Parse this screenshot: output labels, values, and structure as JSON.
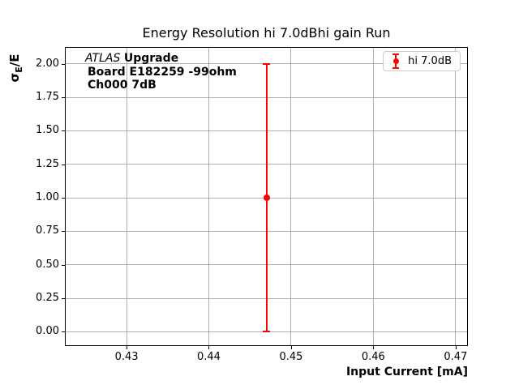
{
  "chart_data": {
    "type": "scatter",
    "title": "Energy Resolution hi 7.0dBhi gain Run",
    "xlabel": "Input Current [mA]",
    "ylabel": {
      "symbol": "σ",
      "subscript": "E",
      "suffix": "/E"
    },
    "xlim": [
      0.4226,
      0.4714
    ],
    "ylim": [
      -0.1,
      2.12
    ],
    "xticks": [
      0.43,
      0.44,
      0.45,
      0.46,
      0.47
    ],
    "xtick_labels": [
      "0.43",
      "0.44",
      "0.45",
      "0.46",
      "0.47"
    ],
    "yticks": [
      0.0,
      0.25,
      0.5,
      0.75,
      1.0,
      1.25,
      1.5,
      1.75,
      2.0
    ],
    "ytick_labels": [
      "0.00",
      "0.25",
      "0.50",
      "0.75",
      "1.00",
      "1.25",
      "1.50",
      "1.75",
      "2.00"
    ],
    "grid": true,
    "legend_position": "upper right",
    "series": [
      {
        "name": "hi 7.0dB",
        "color": "#ff0000",
        "marker": "circle-with-errorbar",
        "points": [
          {
            "x": 0.447,
            "y": 1.0,
            "yerr": 1.0
          }
        ]
      }
    ],
    "annotation": {
      "line1_italic": "ATLAS",
      "line1_bold": "Upgrade",
      "line2": "Board E182259 -99ohm",
      "line3": "Ch000 7dB"
    },
    "colors": {
      "grid": "#b0b0b0",
      "spine": "#000000",
      "background": "#ffffff",
      "legend_border": "#cccccc"
    }
  }
}
